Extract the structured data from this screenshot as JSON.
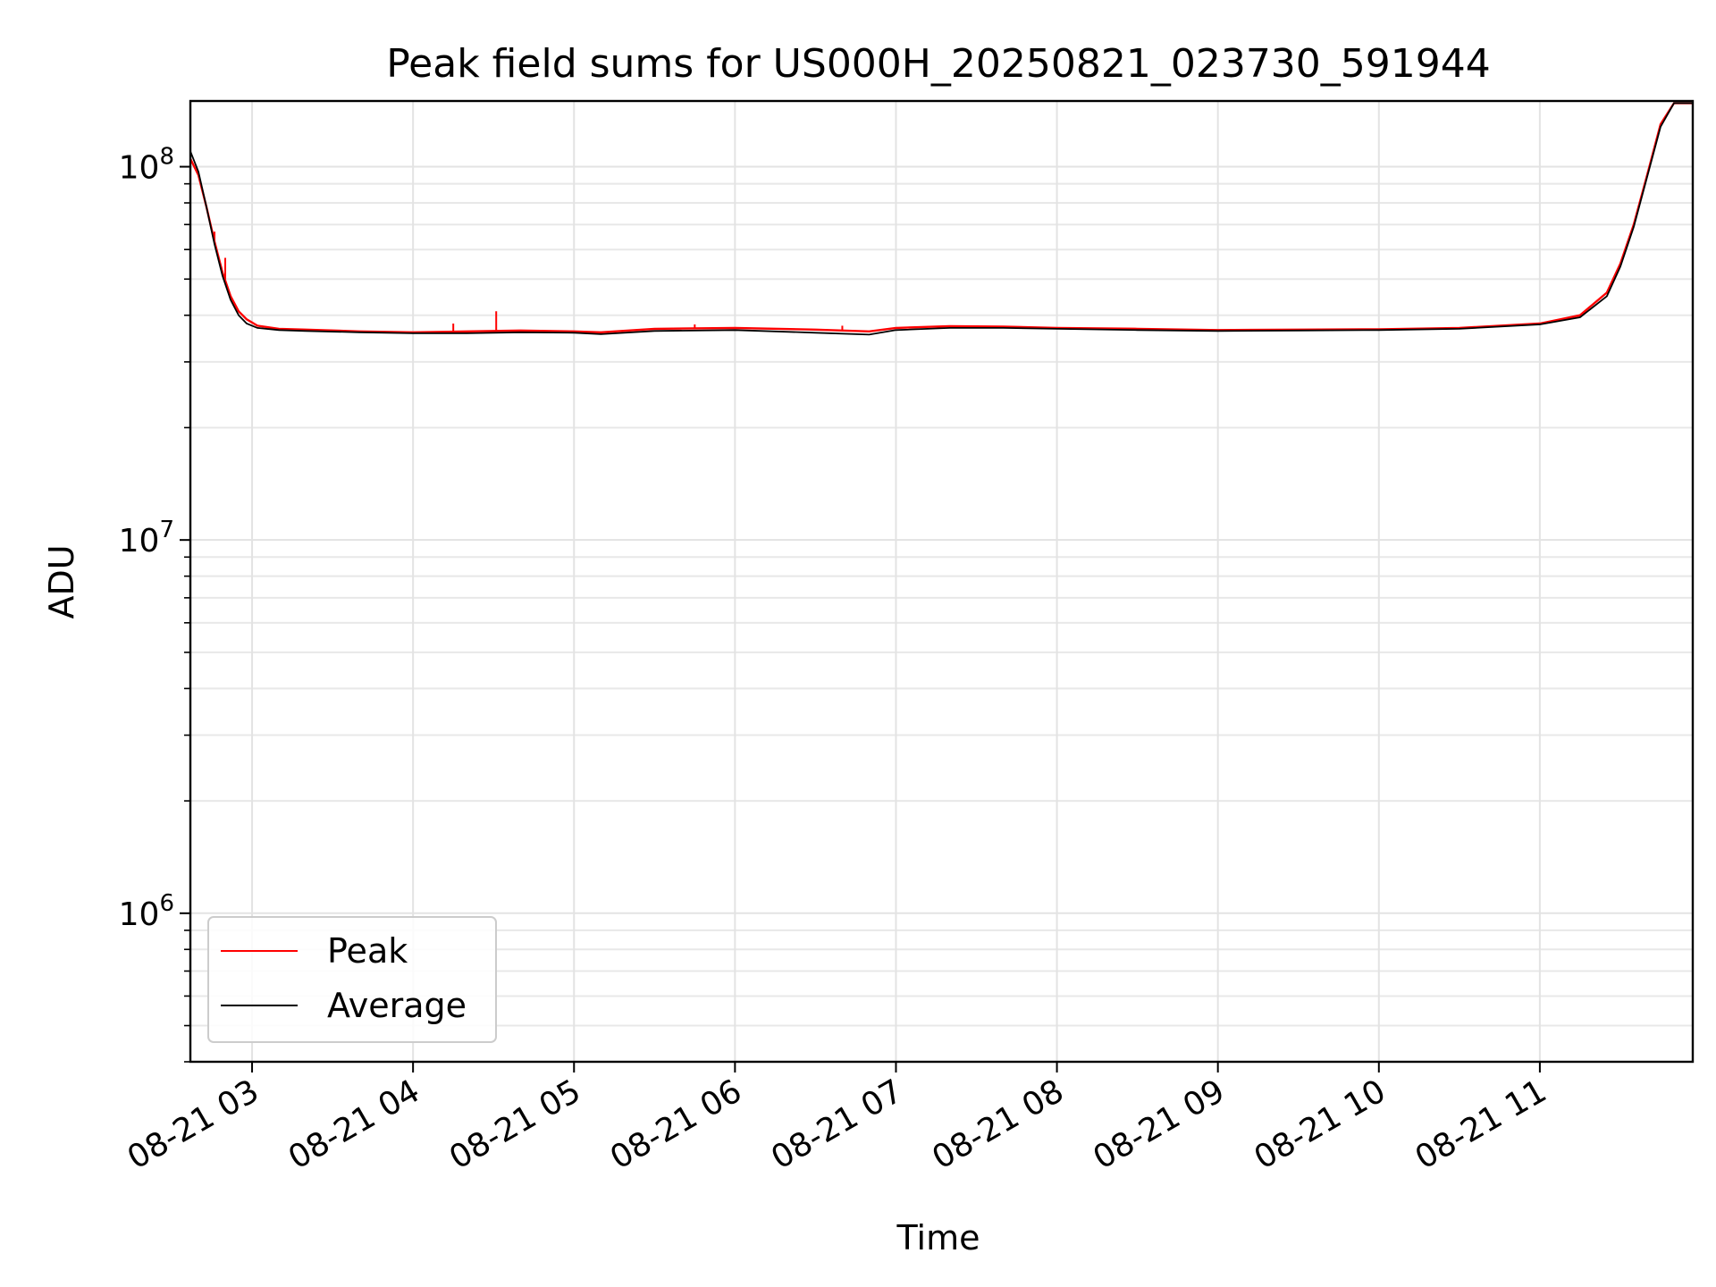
{
  "chart_data": {
    "type": "line",
    "title": "Peak field sums for US000H_20250821_023730_591944",
    "xlabel": "Time",
    "ylabel": "ADU",
    "y_scale": "log",
    "ylim": [
      400000,
      150000000
    ],
    "xlim": [
      "08-21 02:37",
      "08-21 11:57"
    ],
    "grid": "on",
    "legend_position": "lower-left",
    "x_tick_labels": [
      "08-21 03",
      "08-21 04",
      "08-21 05",
      "08-21 06",
      "08-21 07",
      "08-21 08",
      "08-21 09",
      "08-21 10",
      "08-21 11"
    ],
    "y_tick_labels": [
      {
        "base": "10",
        "exp": "6",
        "value": 1000000
      },
      {
        "base": "10",
        "exp": "7",
        "value": 10000000
      },
      {
        "base": "10",
        "exp": "8",
        "value": 100000000
      }
    ],
    "x": [
      "08-21 02:37",
      "08-21 02:40",
      "08-21 02:43",
      "08-21 02:46",
      "08-21 02:49",
      "08-21 02:52",
      "08-21 02:55",
      "08-21 02:58",
      "08-21 03:02",
      "08-21 03:10",
      "08-21 03:20",
      "08-21 03:40",
      "08-21 04:00",
      "08-21 04:20",
      "08-21 04:40",
      "08-21 05:00",
      "08-21 05:10",
      "08-21 05:30",
      "08-21 06:00",
      "08-21 06:30",
      "08-21 06:50",
      "08-21 07:00",
      "08-21 07:20",
      "08-21 07:40",
      "08-21 08:00",
      "08-21 08:30",
      "08-21 09:00",
      "08-21 09:30",
      "08-21 10:00",
      "08-21 10:30",
      "08-21 11:00",
      "08-21 11:15",
      "08-21 11:25",
      "08-21 11:30",
      "08-21 11:35",
      "08-21 11:40",
      "08-21 11:45",
      "08-21 11:50",
      "08-21 11:57"
    ],
    "series": [
      {
        "name": "Peak",
        "color": "#ff0000",
        "values": [
          105000000,
          95000000,
          78000000,
          63000000,
          52000000,
          45000000,
          41000000,
          39000000,
          37500000,
          36800000,
          36600000,
          36200000,
          36000000,
          36200000,
          36400000,
          36200000,
          36000000,
          36800000,
          37000000,
          36600000,
          36200000,
          37000000,
          37400000,
          37300000,
          37000000,
          36800000,
          36500000,
          36600000,
          36700000,
          37000000,
          38000000,
          40000000,
          46000000,
          55000000,
          70000000,
          95000000,
          130000000,
          148000000,
          148000000
        ],
        "spikes": [
          {
            "x": "08-21 02:46",
            "value": 67000000
          },
          {
            "x": "08-21 02:50",
            "value": 57000000
          },
          {
            "x": "08-21 04:31",
            "value": 41000000
          },
          {
            "x": "08-21 04:15",
            "value": 38000000
          },
          {
            "x": "08-21 05:45",
            "value": 37800000
          },
          {
            "x": "08-21 06:40",
            "value": 37500000
          },
          {
            "x": "08-21 11:15",
            "value": 39500000
          }
        ]
      },
      {
        "name": "Average",
        "color": "#000000",
        "values": [
          110000000,
          97000000,
          78000000,
          62000000,
          51000000,
          44000000,
          40000000,
          38000000,
          37000000,
          36500000,
          36300000,
          36000000,
          35800000,
          35800000,
          36000000,
          35900000,
          35600000,
          36300000,
          36500000,
          35900000,
          35500000,
          36500000,
          37000000,
          37000000,
          36800000,
          36500000,
          36300000,
          36400000,
          36500000,
          36800000,
          37800000,
          39500000,
          45000000,
          54000000,
          69000000,
          94000000,
          128000000,
          148000000,
          148000000
        ]
      }
    ]
  }
}
